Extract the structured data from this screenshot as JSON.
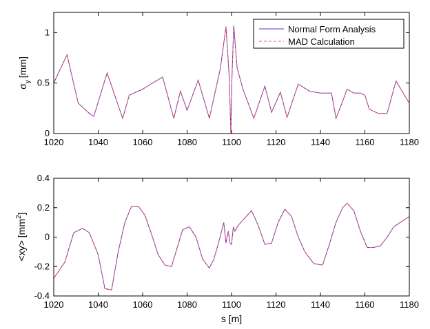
{
  "chart_data": [
    {
      "type": "line",
      "xlabel": "",
      "ylabel": "σ_y [mm]",
      "ylabel_main": "σ",
      "ylabel_sub": "y",
      "ylabel_unit": "[mm]",
      "xlim": [
        1020,
        1180
      ],
      "ylim": [
        0,
        1.2
      ],
      "xticks": [
        "1020",
        "1040",
        "1060",
        "1080",
        "1100",
        "1120",
        "1140",
        "1160",
        "1180"
      ],
      "yticks": [
        "0",
        "0.5",
        "1"
      ],
      "ytick_values": [
        0,
        0.5,
        1
      ],
      "legend": {
        "position": "top-right",
        "entries": [
          "Normal Form Analysis",
          "MAD Calculation"
        ]
      },
      "series": [
        {
          "name": "Normal Form Analysis",
          "color": "#3b3bd6",
          "style": "solid",
          "x": [
            1020,
            1026,
            1031,
            1036,
            1038,
            1044,
            1051,
            1054,
            1060,
            1069,
            1074,
            1077,
            1080,
            1085,
            1090,
            1095,
            1097.5,
            1099,
            1099.7,
            1100.2,
            1101,
            1102.5,
            1105,
            1110,
            1115,
            1118,
            1122,
            1125,
            1130,
            1135,
            1140,
            1143,
            1145,
            1147,
            1150,
            1152,
            1155,
            1158,
            1160,
            1162,
            1164,
            1166,
            1170,
            1174,
            1180
          ],
          "y": [
            0.5,
            0.78,
            0.3,
            0.2,
            0.17,
            0.6,
            0.15,
            0.38,
            0.44,
            0.56,
            0.15,
            0.42,
            0.23,
            0.53,
            0.15,
            0.65,
            1.06,
            0.55,
            0.0,
            0.55,
            1.07,
            0.65,
            0.45,
            0.15,
            0.47,
            0.21,
            0.41,
            0.16,
            0.49,
            0.42,
            0.4,
            0.4,
            0.4,
            0.15,
            0.32,
            0.44,
            0.4,
            0.4,
            0.38,
            0.24,
            0.22,
            0.2,
            0.2,
            0.52,
            0.3
          ]
        },
        {
          "name": "MAD Calculation",
          "color": "#ff5050",
          "style": "dashed",
          "x": [
            1020,
            1026,
            1031,
            1036,
            1038,
            1044,
            1051,
            1054,
            1060,
            1069,
            1074,
            1077,
            1080,
            1085,
            1090,
            1095,
            1097.5,
            1099,
            1099.7,
            1100.2,
            1101,
            1102.5,
            1105,
            1110,
            1115,
            1118,
            1122,
            1125,
            1130,
            1135,
            1140,
            1143,
            1145,
            1147,
            1150,
            1152,
            1155,
            1158,
            1160,
            1162,
            1164,
            1166,
            1170,
            1174,
            1180
          ],
          "y": [
            0.5,
            0.78,
            0.3,
            0.2,
            0.17,
            0.6,
            0.15,
            0.38,
            0.44,
            0.56,
            0.15,
            0.42,
            0.23,
            0.53,
            0.15,
            0.65,
            1.06,
            0.55,
            0.0,
            0.55,
            1.07,
            0.65,
            0.45,
            0.15,
            0.47,
            0.21,
            0.41,
            0.16,
            0.49,
            0.42,
            0.4,
            0.4,
            0.4,
            0.15,
            0.32,
            0.44,
            0.4,
            0.4,
            0.38,
            0.24,
            0.22,
            0.2,
            0.2,
            0.52,
            0.3
          ]
        }
      ]
    },
    {
      "type": "line",
      "xlabel": "s [m]",
      "ylabel": "<xy> [mm²]",
      "ylabel_main": "<xy> [mm",
      "ylabel_sup": "2",
      "ylabel_close": "]",
      "xlim": [
        1020,
        1180
      ],
      "ylim": [
        -0.4,
        0.4
      ],
      "xticks": [
        "1020",
        "1040",
        "1060",
        "1080",
        "1100",
        "1120",
        "1140",
        "1160",
        "1180"
      ],
      "yticks": [
        "-0.4",
        "-0.2",
        "0",
        "0.2",
        "0.4"
      ],
      "ytick_values": [
        -0.4,
        -0.2,
        0,
        0.2,
        0.4
      ],
      "series": [
        {
          "name": "Normal Form Analysis",
          "color": "#3b3bd6",
          "style": "solid",
          "x": [
            1020,
            1025,
            1029,
            1033,
            1036,
            1040,
            1043,
            1046,
            1049,
            1052,
            1055,
            1058,
            1061,
            1064,
            1067,
            1070,
            1073,
            1076,
            1078,
            1081,
            1084,
            1087,
            1090,
            1092,
            1094,
            1096.5,
            1097.5,
            1098.5,
            1099.3,
            1100,
            1100.8,
            1101.5,
            1103,
            1106,
            1109,
            1112,
            1115,
            1118,
            1121,
            1124,
            1127,
            1130,
            1133,
            1137,
            1141,
            1144,
            1147,
            1150,
            1152,
            1155,
            1158,
            1161,
            1164,
            1167,
            1170,
            1173,
            1176,
            1180
          ],
          "y": [
            -0.28,
            -0.17,
            0.03,
            0.06,
            0.03,
            -0.12,
            -0.35,
            -0.36,
            -0.1,
            0.1,
            0.21,
            0.21,
            0.15,
            0.02,
            -0.12,
            -0.19,
            -0.2,
            -0.05,
            0.05,
            0.07,
            0.0,
            -0.15,
            -0.21,
            -0.15,
            -0.05,
            0.1,
            -0.04,
            0.04,
            -0.04,
            -0.05,
            0.07,
            0.04,
            0.08,
            0.13,
            0.18,
            0.08,
            -0.05,
            -0.04,
            0.1,
            0.19,
            0.14,
            0.0,
            -0.1,
            -0.18,
            -0.19,
            -0.05,
            0.1,
            0.2,
            0.23,
            0.18,
            0.04,
            -0.07,
            -0.07,
            -0.06,
            0.0,
            0.07,
            0.1,
            0.14
          ]
        },
        {
          "name": "MAD Calculation",
          "color": "#ff5050",
          "style": "dashed",
          "x": [
            1020,
            1025,
            1029,
            1033,
            1036,
            1040,
            1043,
            1046,
            1049,
            1052,
            1055,
            1058,
            1061,
            1064,
            1067,
            1070,
            1073,
            1076,
            1078,
            1081,
            1084,
            1087,
            1090,
            1092,
            1094,
            1096.5,
            1097.5,
            1098.5,
            1099.3,
            1100,
            1100.8,
            1101.5,
            1103,
            1106,
            1109,
            1112,
            1115,
            1118,
            1121,
            1124,
            1127,
            1130,
            1133,
            1137,
            1141,
            1144,
            1147,
            1150,
            1152,
            1155,
            1158,
            1161,
            1164,
            1167,
            1170,
            1173,
            1176,
            1180
          ],
          "y": [
            -0.28,
            -0.17,
            0.03,
            0.06,
            0.03,
            -0.12,
            -0.35,
            -0.36,
            -0.1,
            0.1,
            0.21,
            0.21,
            0.15,
            0.02,
            -0.12,
            -0.19,
            -0.2,
            -0.05,
            0.05,
            0.07,
            0.0,
            -0.15,
            -0.21,
            -0.15,
            -0.05,
            0.1,
            -0.04,
            0.04,
            -0.04,
            -0.05,
            0.07,
            0.04,
            0.08,
            0.13,
            0.18,
            0.08,
            -0.05,
            -0.04,
            0.1,
            0.19,
            0.14,
            0.0,
            -0.1,
            -0.18,
            -0.19,
            -0.05,
            0.1,
            0.2,
            0.23,
            0.18,
            0.04,
            -0.07,
            -0.07,
            -0.06,
            0.0,
            0.07,
            0.1,
            0.14
          ]
        }
      ]
    }
  ]
}
